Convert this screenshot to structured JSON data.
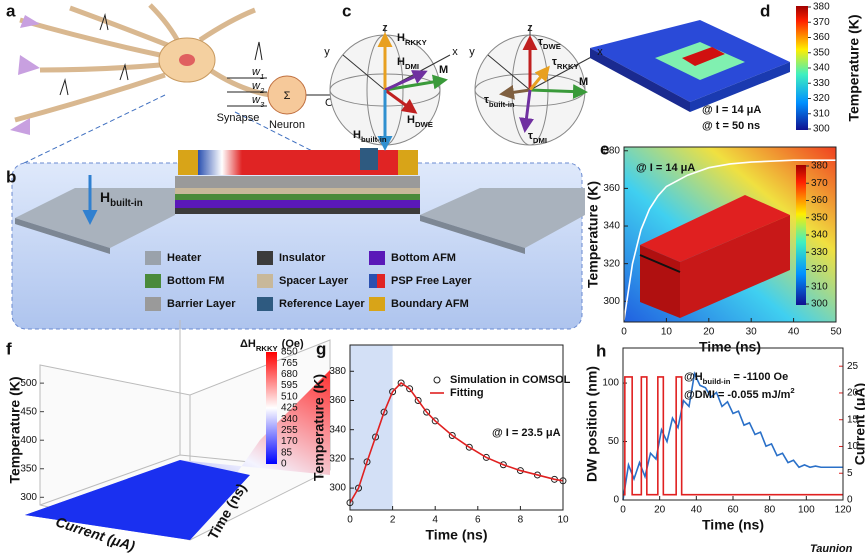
{
  "panel_labels": [
    "a",
    "b",
    "c",
    "d",
    "e",
    "f",
    "g",
    "h"
  ],
  "a": {
    "sum": "Σ",
    "synapse": "Synapse",
    "neuron": "Neuron",
    "output": "Output",
    "weights": [
      {
        "main": "w",
        "sub": "1"
      },
      {
        "main": "w",
        "sub": "2"
      },
      {
        "main": "w",
        "sub": "3"
      }
    ]
  },
  "b": {
    "field": {
      "main": "H",
      "sub": "built-in"
    },
    "legend": [
      {
        "name": "Heater",
        "colors": [
          "#9aa2ab"
        ]
      },
      {
        "name": "Insulator",
        "colors": [
          "#3b3b3b"
        ]
      },
      {
        "name": "Bottom AFM",
        "colors": [
          "#5a18b8"
        ]
      },
      {
        "name": "Bottom FM",
        "colors": [
          "#4a8a3a"
        ]
      },
      {
        "name": "Spacer Layer",
        "colors": [
          "#c8b89a"
        ]
      },
      {
        "name": "PSP Free Layer",
        "colors": [
          "#2a50b0",
          "#e02424"
        ]
      },
      {
        "name": "Barrier Layer",
        "colors": [
          "#9a9a9a"
        ]
      },
      {
        "name": "Reference Layer",
        "colors": [
          "#2e5a80"
        ]
      },
      {
        "name": "Boundary AFM",
        "colors": [
          "#d8a418"
        ]
      }
    ]
  },
  "c": {
    "left": {
      "axes": [
        "z",
        "y",
        "x"
      ],
      "m": "M",
      "m_color": "#3a9a3a",
      "vectors": [
        {
          "main": "H",
          "sub": "RKKY",
          "color": "#e8a020"
        },
        {
          "main": "H",
          "sub": "DMI",
          "color": "#7030a0"
        },
        {
          "main": "H",
          "sub": "DWE",
          "color": "#c02020"
        },
        {
          "main": "H",
          "sub": "built-in",
          "color": "#3090d0"
        }
      ]
    },
    "right": {
      "axes": [
        "z",
        "y",
        "x"
      ],
      "m": "M",
      "m_color": "#3a9a3a",
      "vectors": [
        {
          "main": "τ",
          "sub": "DWE",
          "color": "#c02020"
        },
        {
          "main": "τ",
          "sub": "RKKY",
          "color": "#e8a020"
        },
        {
          "main": "τ",
          "sub": "built-in",
          "color": "#806040"
        },
        {
          "main": "τ",
          "sub": "DMI",
          "color": "#7030a0"
        }
      ]
    }
  },
  "d": {
    "annotations": [
      "@ I = 14 μA",
      "@ t = 50 ns"
    ],
    "colorbar": {
      "label": "Temperature (K)",
      "lim": [
        300,
        380
      ],
      "ticks": [
        300,
        310,
        320,
        330,
        340,
        350,
        360,
        370,
        380
      ]
    }
  },
  "chart_data": [
    {
      "type": "line",
      "panel": "e",
      "annotation": "@ I = 14 μA",
      "xlabel": "Time (ns)",
      "ylabel": "Temperature (K)",
      "xlim": [
        0,
        50
      ],
      "ylim": [
        289,
        382
      ],
      "xticks": [
        0,
        10,
        20,
        30,
        40,
        50
      ],
      "yticks": [
        300,
        320,
        340,
        360,
        380
      ],
      "x": [
        0,
        2,
        4,
        6,
        8,
        10,
        15,
        20,
        25,
        30,
        40,
        50
      ],
      "series": [
        {
          "color": "#ffffff",
          "kind": "line",
          "values": [
            290,
            320,
            338,
            349,
            356,
            361,
            367,
            371,
            373,
            374,
            375,
            375
          ]
        }
      ],
      "colorbar": {
        "lim": [
          300,
          380
        ],
        "ticks": [
          300,
          310,
          320,
          330,
          340,
          350,
          360,
          370,
          380
        ]
      }
    },
    {
      "type": "surface",
      "panel": "f",
      "xlabel": "Current (μA)",
      "ylabel": "Time (ns)",
      "zlabel": "Temperature (K)",
      "zlim": [
        290,
        530
      ],
      "zticks": [
        300,
        350,
        400,
        450,
        500
      ],
      "colorbar": {
        "title": {
          "main": "ΔH",
          "sub": "RKKY",
          "unit": "(Oe)"
        },
        "lim": [
          0,
          850
        ],
        "ticks": [
          0,
          85,
          170,
          255,
          340,
          425,
          510,
          595,
          680,
          765,
          850
        ]
      }
    },
    {
      "type": "line",
      "panel": "g",
      "annotation": "@ I = 23.5 μA",
      "xlabel": "Time (ns)",
      "ylabel": "Temperature (K)",
      "xlim": [
        0,
        10
      ],
      "ylim": [
        285,
        398
      ],
      "xticks": [
        0,
        2,
        4,
        6,
        8,
        10
      ],
      "yticks": [
        300,
        320,
        340,
        360,
        380
      ],
      "shade": [
        0,
        2
      ],
      "x": [
        0,
        0.4,
        0.8,
        1.2,
        1.6,
        2.0,
        2.4,
        2.8,
        3.2,
        3.6,
        4.0,
        4.8,
        5.6,
        6.4,
        7.2,
        8.0,
        8.8,
        9.6,
        10
      ],
      "series": [
        {
          "name": "Simulation in COMSOL",
          "kind": "scatter",
          "color": "#222222",
          "values": [
            290,
            300,
            318,
            335,
            352,
            366,
            372,
            368,
            360,
            352,
            346,
            336,
            328,
            321,
            316,
            312,
            309,
            306,
            305
          ]
        },
        {
          "name": "Fitting",
          "kind": "line",
          "color": "#e02020",
          "values": [
            290,
            300,
            318,
            335,
            352,
            366,
            372,
            368,
            360,
            352,
            346,
            336,
            328,
            321,
            316,
            312,
            309,
            306,
            305
          ]
        }
      ]
    },
    {
      "type": "line",
      "panel": "h",
      "annotations": [
        {
          "main": "@H",
          "sub": "build-in",
          "rest": " = -1100 Oe"
        },
        {
          "main": "@DMI = -0.055 mJ/m",
          "sup": "2"
        }
      ],
      "xlabel": "Time (ns)",
      "ylabel": "DW position (nm)",
      "y2label": "Current (μA)",
      "xlim": [
        0,
        120
      ],
      "ylim": [
        0,
        130
      ],
      "y2lim": [
        0,
        28.4
      ],
      "xticks": [
        0,
        20,
        40,
        60,
        80,
        100,
        120
      ],
      "yticks": [
        0,
        50,
        100
      ],
      "y2ticks": [
        0,
        5,
        10,
        15,
        20,
        25
      ],
      "series": [
        {
          "kind": "line",
          "color": "#2a70c8",
          "x": [
            0,
            3,
            6,
            9,
            12,
            15,
            18,
            21,
            24,
            27,
            30,
            33,
            36,
            39,
            42,
            45,
            48,
            51,
            54,
            57,
            60,
            63,
            66,
            69,
            72,
            75,
            78,
            81,
            84,
            87,
            90,
            93,
            96,
            99,
            102,
            105,
            108,
            111,
            114,
            117,
            120
          ],
          "values": [
            0,
            30,
            18,
            32,
            20,
            40,
            35,
            60,
            50,
            70,
            62,
            85,
            80,
            108,
            98,
            96,
            88,
            92,
            80,
            84,
            74,
            76,
            64,
            66,
            56,
            58,
            46,
            48,
            38,
            40,
            32,
            34,
            28,
            30,
            28,
            29,
            28,
            28,
            28,
            28,
            28
          ]
        },
        {
          "kind": "line",
          "color": "#e02020",
          "axis": "y2",
          "x": [
            0,
            1,
            1,
            5,
            5,
            10,
            10,
            13,
            13,
            19,
            19,
            22,
            22,
            29,
            29,
            32,
            32,
            120
          ],
          "values": [
            1,
            1,
            23,
            23,
            1,
            1,
            23,
            23,
            1,
            1,
            23,
            23,
            1,
            1,
            23,
            23,
            1,
            1
          ]
        }
      ]
    }
  ],
  "watermark": "Taunion"
}
